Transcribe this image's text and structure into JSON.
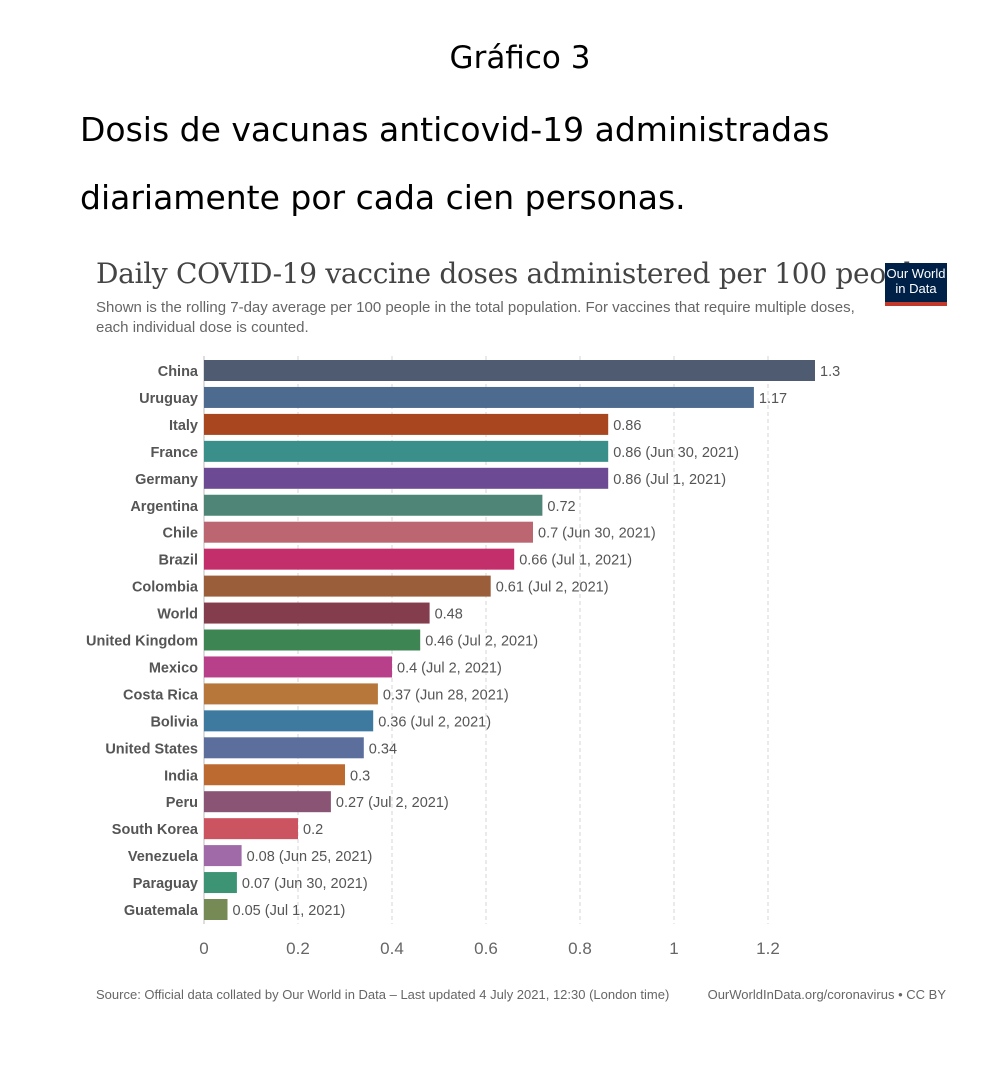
{
  "document": {
    "label": "Gráfico 3",
    "title_line1": "Dosis de vacunas anticovid-19 administradas",
    "title_line2": "diariamente por cada cien personas."
  },
  "logo": {
    "line1": "Our World",
    "line2": "in Data"
  },
  "footer": {
    "source": "Source: Official data collated by Our World in Data – Last updated 4 July 2021, 12:30 (London time)",
    "link": "OurWorldInData.org/coronavirus • CC BY"
  },
  "chart_data": {
    "type": "bar",
    "orientation": "horizontal",
    "title": "Daily COVID-19 vaccine doses administered per 100 people",
    "subtitle": "Shown is the rolling 7-day average per 100 people in the total population. For vaccines that require multiple doses, each individual dose is counted.",
    "xlim": [
      0,
      1.3
    ],
    "xticks": [
      0,
      0.2,
      0.4,
      0.6,
      0.8,
      1,
      1.2
    ],
    "xtick_labels": [
      "0",
      "0.2",
      "0.4",
      "0.6",
      "0.8",
      "1",
      "1.2"
    ],
    "grid": true,
    "bars": [
      {
        "category": "China",
        "value": 1.3,
        "label": "1.3",
        "color": "#4f5b70"
      },
      {
        "category": "Uruguay",
        "value": 1.17,
        "label": "1.17",
        "color": "#4d6b8f"
      },
      {
        "category": "Italy",
        "value": 0.86,
        "label": "0.86",
        "color": "#a9451f"
      },
      {
        "category": "France",
        "value": 0.86,
        "label": "0.86 (Jun 30, 2021)",
        "color": "#3a8f8a"
      },
      {
        "category": "Germany",
        "value": 0.86,
        "label": "0.86 (Jul 1, 2021)",
        "color": "#6c4a94"
      },
      {
        "category": "Argentina",
        "value": 0.72,
        "label": "0.72",
        "color": "#4f8577"
      },
      {
        "category": "Chile",
        "value": 0.7,
        "label": "0.7 (Jun 30, 2021)",
        "color": "#bb6671"
      },
      {
        "category": "Brazil",
        "value": 0.66,
        "label": "0.66 (Jul 1, 2021)",
        "color": "#c22f6b"
      },
      {
        "category": "Colombia",
        "value": 0.61,
        "label": "0.61 (Jul 2, 2021)",
        "color": "#9b5e3b"
      },
      {
        "category": "World",
        "value": 0.48,
        "label": "0.48",
        "color": "#833d4d"
      },
      {
        "category": "United Kingdom",
        "value": 0.46,
        "label": "0.46 (Jul 2, 2021)",
        "color": "#3d8653"
      },
      {
        "category": "Mexico",
        "value": 0.4,
        "label": "0.4 (Jul 2, 2021)",
        "color": "#b83f8a"
      },
      {
        "category": "Costa Rica",
        "value": 0.37,
        "label": "0.37 (Jun 28, 2021)",
        "color": "#b7773a"
      },
      {
        "category": "Bolivia",
        "value": 0.36,
        "label": "0.36 (Jul 2, 2021)",
        "color": "#3e7aa0"
      },
      {
        "category": "United States",
        "value": 0.34,
        "label": "0.34",
        "color": "#5c6f9c"
      },
      {
        "category": "India",
        "value": 0.3,
        "label": "0.3",
        "color": "#bd6a30"
      },
      {
        "category": "Peru",
        "value": 0.27,
        "label": "0.27 (Jul 2, 2021)",
        "color": "#8a5575"
      },
      {
        "category": "South Korea",
        "value": 0.2,
        "label": "0.2",
        "color": "#cc5460"
      },
      {
        "category": "Venezuela",
        "value": 0.08,
        "label": "0.08 (Jun 25, 2021)",
        "color": "#a06aa8"
      },
      {
        "category": "Paraguay",
        "value": 0.07,
        "label": "0.07 (Jun 30, 2021)",
        "color": "#3c9474"
      },
      {
        "category": "Guatemala",
        "value": 0.05,
        "label": "0.05 (Jul 1, 2021)",
        "color": "#758a55"
      }
    ]
  }
}
